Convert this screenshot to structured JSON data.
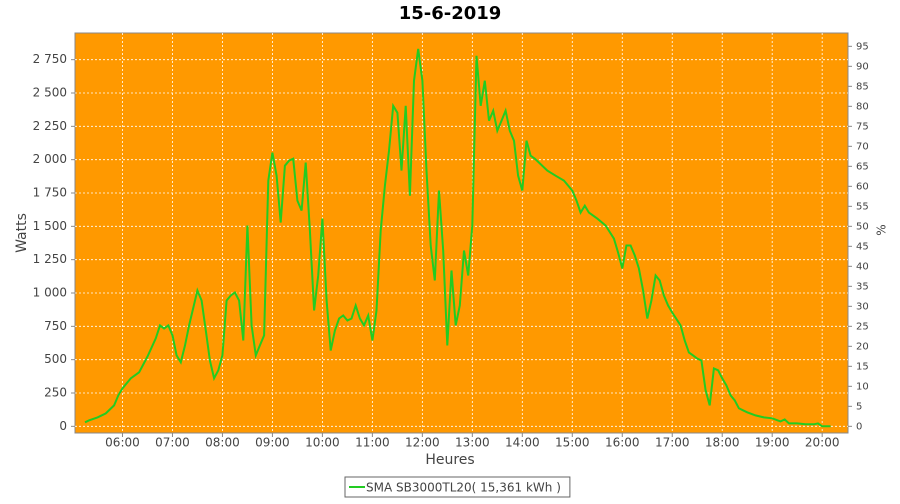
{
  "chart_data": {
    "type": "line",
    "title": "15-6-2019",
    "xlabel": "Heures",
    "ylabel": "Watts",
    "y2label": "%",
    "x": [
      "05:15",
      "05:20",
      "05:30",
      "05:40",
      "05:50",
      "05:55",
      "06:00",
      "06:10",
      "06:20",
      "06:30",
      "06:40",
      "06:45",
      "06:50",
      "06:55",
      "07:00",
      "07:05",
      "07:10",
      "07:15",
      "07:20",
      "07:30",
      "07:35",
      "07:40",
      "07:45",
      "07:50",
      "07:55",
      "08:00",
      "08:05",
      "08:10",
      "08:15",
      "08:20",
      "08:25",
      "08:30",
      "08:35",
      "08:40",
      "08:45",
      "08:50",
      "08:55",
      "09:00",
      "09:05",
      "09:10",
      "09:15",
      "09:20",
      "09:25",
      "09:30",
      "09:35",
      "09:40",
      "09:45",
      "09:50",
      "09:55",
      "10:00",
      "10:05",
      "10:10",
      "10:15",
      "10:20",
      "10:25",
      "10:30",
      "10:35",
      "10:40",
      "10:45",
      "10:50",
      "10:55",
      "11:00",
      "11:05",
      "11:10",
      "11:15",
      "11:20",
      "11:25",
      "11:30",
      "11:35",
      "11:40",
      "11:45",
      "11:50",
      "11:55",
      "12:00",
      "12:05",
      "12:10",
      "12:15",
      "12:20",
      "12:25",
      "12:30",
      "12:35",
      "12:40",
      "12:45",
      "12:50",
      "12:55",
      "13:00",
      "13:05",
      "13:10",
      "13:15",
      "13:20",
      "13:25",
      "13:30",
      "13:35",
      "13:40",
      "13:45",
      "13:50",
      "13:55",
      "14:00",
      "14:05",
      "14:10",
      "14:15",
      "14:20",
      "14:30",
      "14:40",
      "14:50",
      "15:00",
      "15:05",
      "15:10",
      "15:15",
      "15:20",
      "15:30",
      "15:40",
      "15:50",
      "15:55",
      "16:00",
      "16:05",
      "16:10",
      "16:15",
      "16:20",
      "16:25",
      "16:30",
      "16:35",
      "16:40",
      "16:45",
      "16:50",
      "16:55",
      "17:00",
      "17:10",
      "17:15",
      "17:20",
      "17:25",
      "17:30",
      "17:35",
      "17:40",
      "17:45",
      "17:50",
      "17:55",
      "18:00",
      "18:05",
      "18:10",
      "18:15",
      "18:20",
      "18:25",
      "18:30",
      "18:40",
      "18:50",
      "19:00",
      "19:10",
      "19:15",
      "19:20",
      "19:30",
      "19:40",
      "19:50",
      "19:55",
      "20:00",
      "20:10"
    ],
    "series": [
      {
        "name": "SMA SB3000TL20( 15,361 kWh )",
        "color": "#22cc22",
        "values": [
          30,
          45,
          67,
          97,
          157,
          232,
          285,
          360,
          405,
          524,
          660,
          757,
          734,
          757,
          682,
          532,
          480,
          607,
          757,
          1019,
          944,
          719,
          494,
          360,
          420,
          532,
          944,
          981,
          1004,
          944,
          644,
          1506,
          757,
          532,
          607,
          682,
          1843,
          2052,
          1880,
          1528,
          1955,
          1993,
          2007,
          1693,
          1618,
          1978,
          1468,
          869,
          1131,
          1558,
          944,
          569,
          719,
          809,
          831,
          794,
          809,
          906,
          809,
          757,
          831,
          644,
          869,
          1468,
          1805,
          2067,
          2404,
          2352,
          1918,
          2404,
          1730,
          2592,
          2831,
          2592,
          1918,
          1356,
          1094,
          1768,
          1318,
          607,
          1169,
          757,
          906,
          1318,
          1131,
          1506,
          2779,
          2404,
          2592,
          2292,
          2367,
          2217,
          2292,
          2367,
          2217,
          2142,
          1880,
          1768,
          2142,
          2030,
          2007,
          1978,
          1918,
          1880,
          1843,
          1768,
          1693,
          1603,
          1655,
          1603,
          1558,
          1506,
          1408,
          1303,
          1184,
          1356,
          1356,
          1281,
          1184,
          1019,
          809,
          944,
          1131,
          1094,
          981,
          906,
          854,
          757,
          644,
          554,
          532,
          509,
          494,
          270,
          157,
          434,
          420,
          360,
          307,
          232,
          195,
          135,
          120,
          105,
          82,
          67,
          60,
          37,
          52,
          22,
          22,
          15,
          15,
          22,
          0,
          0
        ]
      }
    ],
    "xlim": [
      "05:03",
      "20:31"
    ],
    "xticks": [
      "06:00",
      "07:00",
      "08:00",
      "09:00",
      "10:00",
      "11:00",
      "12:00",
      "13:00",
      "14:00",
      "15:00",
      "16:00",
      "17:00",
      "18:00",
      "19:00",
      "20:00"
    ],
    "ylim": [
      -50,
      2950
    ],
    "yticks": [
      0,
      250,
      500,
      750,
      {
        "value": 1000,
        "label": "1 000"
      },
      {
        "value": 1250,
        "label": "1 250"
      },
      {
        "value": 1500,
        "label": "1 500"
      },
      {
        "value": 1750,
        "label": "1 750"
      },
      {
        "value": 2000,
        "label": "2 000"
      },
      {
        "value": 2250,
        "label": "2 250"
      },
      {
        "value": 2500,
        "label": "2 500"
      },
      {
        "value": 2750,
        "label": "2 750"
      }
    ],
    "y2lim": [
      -1.67,
      98.33
    ],
    "y2ticks": [
      0,
      5,
      10,
      15,
      20,
      25,
      30,
      35,
      40,
      45,
      50,
      55,
      60,
      65,
      70,
      75,
      80,
      85,
      90,
      95
    ],
    "grid": true,
    "background": "#ff9900",
    "legend": "bottom"
  }
}
